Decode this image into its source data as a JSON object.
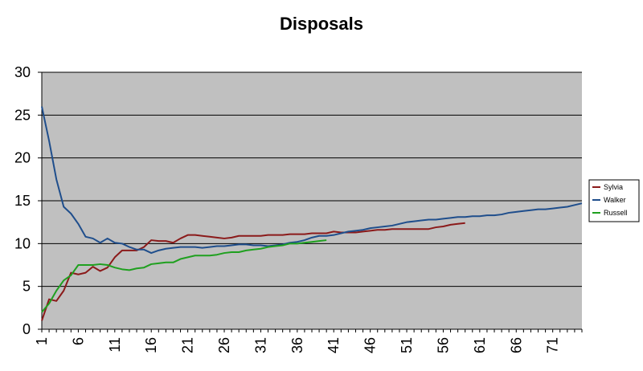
{
  "chart_data": {
    "type": "line",
    "title": "Disposals",
    "xlabel": "",
    "ylabel": "",
    "ylim": [
      0,
      30
    ],
    "y_ticks": [
      0,
      5,
      10,
      15,
      20,
      25,
      30
    ],
    "x_range": [
      1,
      75
    ],
    "x_tick_labels": [
      "1",
      "6",
      "11",
      "16",
      "21",
      "26",
      "31",
      "36",
      "41",
      "46",
      "51",
      "56",
      "61",
      "66",
      "71"
    ],
    "grid": true,
    "plot_background": "#C0C0C0",
    "legend_position": "right",
    "series": [
      {
        "name": "Sylvia",
        "color": "#8B1A1A",
        "x": [
          1,
          2,
          3,
          4,
          5,
          6,
          7,
          8,
          9,
          10,
          11,
          12,
          13,
          14,
          15,
          16,
          17,
          18,
          19,
          20,
          21,
          22,
          23,
          24,
          25,
          26,
          27,
          28,
          29,
          30,
          31,
          32,
          33,
          34,
          35,
          36,
          37,
          38,
          39,
          40,
          41,
          42,
          43,
          44,
          45,
          46,
          47,
          48,
          49,
          50,
          51,
          52,
          53,
          54,
          55,
          56,
          57,
          58,
          59
        ],
        "values": [
          1,
          3.5,
          3.3,
          4.5,
          6.6,
          6.4,
          6.6,
          7.3,
          6.8,
          7.2,
          8.4,
          9.2,
          9.2,
          9.2,
          9.6,
          10.4,
          10.3,
          10.3,
          10.1,
          10.6,
          11.0,
          11.0,
          10.9,
          10.8,
          10.7,
          10.6,
          10.7,
          10.9,
          10.9,
          10.9,
          10.9,
          11.0,
          11.0,
          11.0,
          11.1,
          11.1,
          11.1,
          11.2,
          11.2,
          11.2,
          11.4,
          11.3,
          11.3,
          11.3,
          11.4,
          11.5,
          11.6,
          11.6,
          11.7,
          11.7,
          11.7,
          11.7,
          11.7,
          11.7,
          11.9,
          12.0,
          12.2,
          12.3,
          12.4
        ]
      },
      {
        "name": "Walker",
        "color": "#1F4E8C",
        "x": [
          1,
          2,
          3,
          4,
          5,
          6,
          7,
          8,
          9,
          10,
          11,
          12,
          13,
          14,
          15,
          16,
          17,
          18,
          19,
          20,
          21,
          22,
          23,
          24,
          25,
          26,
          27,
          28,
          29,
          30,
          31,
          32,
          33,
          34,
          35,
          36,
          37,
          38,
          39,
          40,
          41,
          42,
          43,
          44,
          45,
          46,
          47,
          48,
          49,
          50,
          51,
          52,
          53,
          54,
          55,
          56,
          57,
          58,
          59,
          60,
          61,
          62,
          63,
          64,
          65,
          66,
          67,
          68,
          69,
          70,
          71,
          72,
          73,
          74,
          75
        ],
        "values": [
          26,
          22,
          17.5,
          14.3,
          13.5,
          12.3,
          10.8,
          10.6,
          10.1,
          10.6,
          10.1,
          10.0,
          9.6,
          9.3,
          9.3,
          8.9,
          9.2,
          9.4,
          9.5,
          9.6,
          9.6,
          9.6,
          9.5,
          9.6,
          9.7,
          9.7,
          9.8,
          9.9,
          9.9,
          9.8,
          9.8,
          9.7,
          9.8,
          9.9,
          10.1,
          10.2,
          10.4,
          10.7,
          10.9,
          10.9,
          11.0,
          11.2,
          11.4,
          11.5,
          11.6,
          11.8,
          11.9,
          12.0,
          12.1,
          12.3,
          12.5,
          12.6,
          12.7,
          12.8,
          12.8,
          12.9,
          13.0,
          13.1,
          13.1,
          13.2,
          13.2,
          13.3,
          13.3,
          13.4,
          13.6,
          13.7,
          13.8,
          13.9,
          14.0,
          14.0,
          14.1,
          14.2,
          14.3,
          14.5,
          14.7
        ]
      },
      {
        "name": "Russell",
        "color": "#1FA01F",
        "x": [
          1,
          2,
          3,
          4,
          5,
          6,
          7,
          8,
          9,
          10,
          11,
          12,
          13,
          14,
          15,
          16,
          17,
          18,
          19,
          20,
          21,
          22,
          23,
          24,
          25,
          26,
          27,
          28,
          29,
          30,
          31,
          32,
          33,
          34,
          35,
          36,
          37,
          38,
          39,
          40
        ],
        "values": [
          2,
          3.0,
          4.5,
          5.7,
          6.3,
          7.5,
          7.5,
          7.5,
          7.6,
          7.5,
          7.2,
          7.0,
          6.9,
          7.1,
          7.2,
          7.6,
          7.7,
          7.8,
          7.8,
          8.2,
          8.4,
          8.6,
          8.6,
          8.6,
          8.7,
          8.9,
          9.0,
          9.0,
          9.2,
          9.3,
          9.4,
          9.6,
          9.7,
          9.8,
          10.0,
          10.0,
          10.1,
          10.2,
          10.3,
          10.4
        ]
      }
    ]
  }
}
